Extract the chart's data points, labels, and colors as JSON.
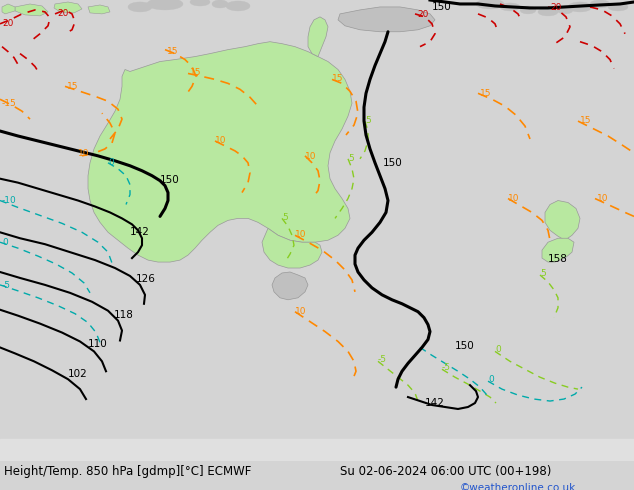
{
  "title_left": "Height/Temp. 850 hPa [gdmp][°C] ECMWF",
  "title_right": "Su 02-06-2024 06:00 UTC (00+198)",
  "credit": "©weatheronline.co.uk",
  "bg_color": "#d4d4d4",
  "ocean_color": "#d4d4d4",
  "land_color": "#c0c0c0",
  "aus_color": "#b8e8a0",
  "nz_color": "#b8e8a0",
  "title_fs": 8.5,
  "credit_fs": 7.5,
  "credit_color": "#2255cc",
  "fig_w": 6.34,
  "fig_h": 4.9,
  "dpi": 100,
  "bottom_bar_color": "#e0e0e0",
  "black_lw": 2.2,
  "thin_lw": 1.5,
  "orange": "#FF8800",
  "green": "#88cc22",
  "cyan": "#00aaaa",
  "red": "#cc0000"
}
